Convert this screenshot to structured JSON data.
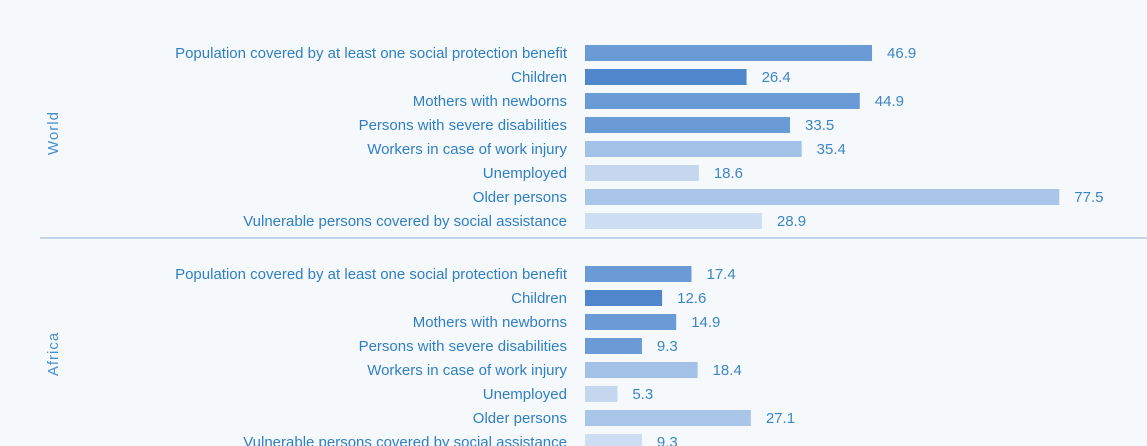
{
  "chart_data": {
    "type": "bar",
    "orientation": "horizontal",
    "xlim": [
      0,
      80
    ],
    "grid": false,
    "legend": "none",
    "categories": [
      "Population covered by at least one social protection benefit",
      "Children",
      "Mothers with newborns",
      "Persons with severe disabilities",
      "Workers in case of work injury",
      "Unemployed",
      "Older persons",
      "Vulnerable persons covered by social assistance"
    ],
    "category_colors": [
      "#6b9bd6",
      "#4f86cc",
      "#6b9bd6",
      "#6b9bd6",
      "#a3c1e6",
      "#c4d7ef",
      "#a9c5e8",
      "#cddef2"
    ],
    "groups": [
      {
        "name": "World",
        "values": [
          46.9,
          26.4,
          44.9,
          33.5,
          35.4,
          18.6,
          77.5,
          28.9
        ]
      },
      {
        "name": "Africa",
        "values": [
          17.4,
          12.6,
          14.9,
          9.3,
          18.4,
          5.3,
          27.1,
          9.3
        ]
      }
    ]
  }
}
